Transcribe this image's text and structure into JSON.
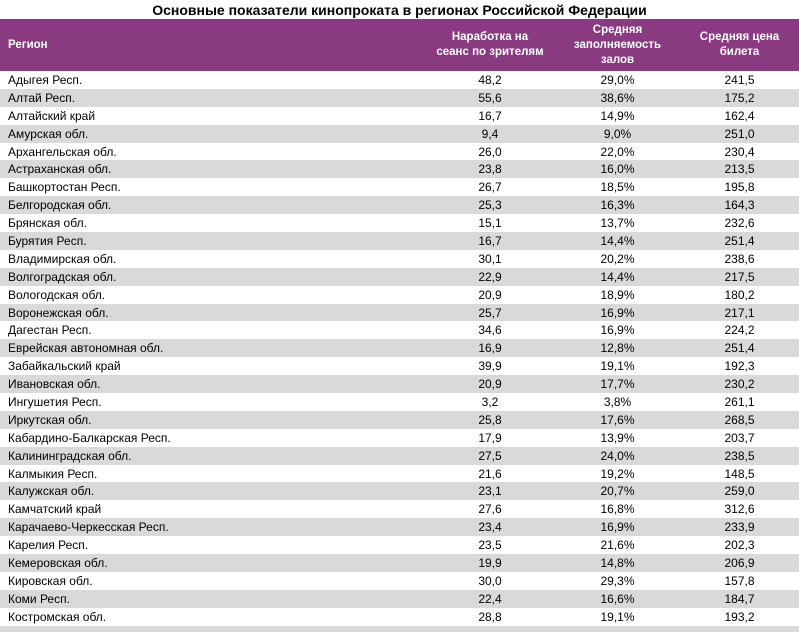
{
  "title": "Основные показатели кинопроката в регионах Российской Федерации",
  "colors": {
    "header_bg": "#893A80",
    "header_text": "#FFFFFF",
    "stripe_bg": "#D9D9D9",
    "body_text": "#000000"
  },
  "chart_data": {
    "type": "table",
    "title": "Основные показатели кинопроката в регионах Российской Федерации",
    "legend_position": "none",
    "grid": "striped-rows",
    "columns": [
      "Регион",
      "Наработка на\nсеанс по зрителям",
      "Средняя\nзаполняемость\nзалов",
      "Средняя цена\nбилета"
    ],
    "rows": [
      [
        "Адыгея Респ.",
        "48,2",
        "29,0%",
        "241,5"
      ],
      [
        "Алтай Респ.",
        "55,6",
        "38,6%",
        "175,2"
      ],
      [
        "Алтайский край",
        "16,7",
        "14,9%",
        "162,4"
      ],
      [
        "Амурская обл.",
        "9,4",
        "9,0%",
        "251,0"
      ],
      [
        "Архангельская обл.",
        "26,0",
        "22,0%",
        "230,4"
      ],
      [
        "Астраханская обл.",
        "23,8",
        "16,0%",
        "213,5"
      ],
      [
        "Башкортостан Респ.",
        "26,7",
        "18,5%",
        "195,8"
      ],
      [
        "Белгородская обл.",
        "25,3",
        "16,3%",
        "164,3"
      ],
      [
        "Брянская обл.",
        "15,1",
        "13,7%",
        "232,6"
      ],
      [
        "Бурятия Респ.",
        "16,7",
        "14,4%",
        "251,4"
      ],
      [
        "Владимирская обл.",
        "30,1",
        "20,2%",
        "238,6"
      ],
      [
        "Волгоградская обл.",
        "22,9",
        "14,4%",
        "217,5"
      ],
      [
        "Вологодская обл.",
        "20,9",
        "18,9%",
        "180,2"
      ],
      [
        "Воронежская обл.",
        "25,7",
        "16,9%",
        "217,1"
      ],
      [
        "Дагестан Респ.",
        "34,6",
        "16,9%",
        "224,2"
      ],
      [
        "Еврейская автономная обл.",
        "16,9",
        "12,8%",
        "251,4"
      ],
      [
        "Забайкальский край",
        "39,9",
        "19,1%",
        "192,3"
      ],
      [
        "Ивановская обл.",
        "20,9",
        "17,7%",
        "230,2"
      ],
      [
        "Ингушетия Респ.",
        "3,2",
        "3,8%",
        "261,1"
      ],
      [
        "Иркутская обл.",
        "25,8",
        "17,6%",
        "268,5"
      ],
      [
        "Кабардино-Балкарская Респ.",
        "17,9",
        "13,9%",
        "203,7"
      ],
      [
        "Калининградская обл.",
        "27,5",
        "24,0%",
        "238,5"
      ],
      [
        "Калмыкия Респ.",
        "21,6",
        "19,2%",
        "148,5"
      ],
      [
        "Калужская обл.",
        "23,1",
        "20,7%",
        "259,0"
      ],
      [
        "Камчатский край",
        "27,6",
        "16,8%",
        "312,6"
      ],
      [
        "Карачаево-Черкесская Респ.",
        "23,4",
        "16,9%",
        "233,9"
      ],
      [
        "Карелия Респ.",
        "23,5",
        "21,6%",
        "202,3"
      ],
      [
        "Кемеровская обл.",
        "19,9",
        "14,8%",
        "206,9"
      ],
      [
        "Кировская обл.",
        "30,0",
        "29,3%",
        "157,8"
      ],
      [
        "Коми Респ.",
        "22,4",
        "16,6%",
        "184,7"
      ],
      [
        "Костромская обл.",
        "28,8",
        "19,1%",
        "193,2"
      ]
    ],
    "partial_row_cut_at_bottom": true
  }
}
